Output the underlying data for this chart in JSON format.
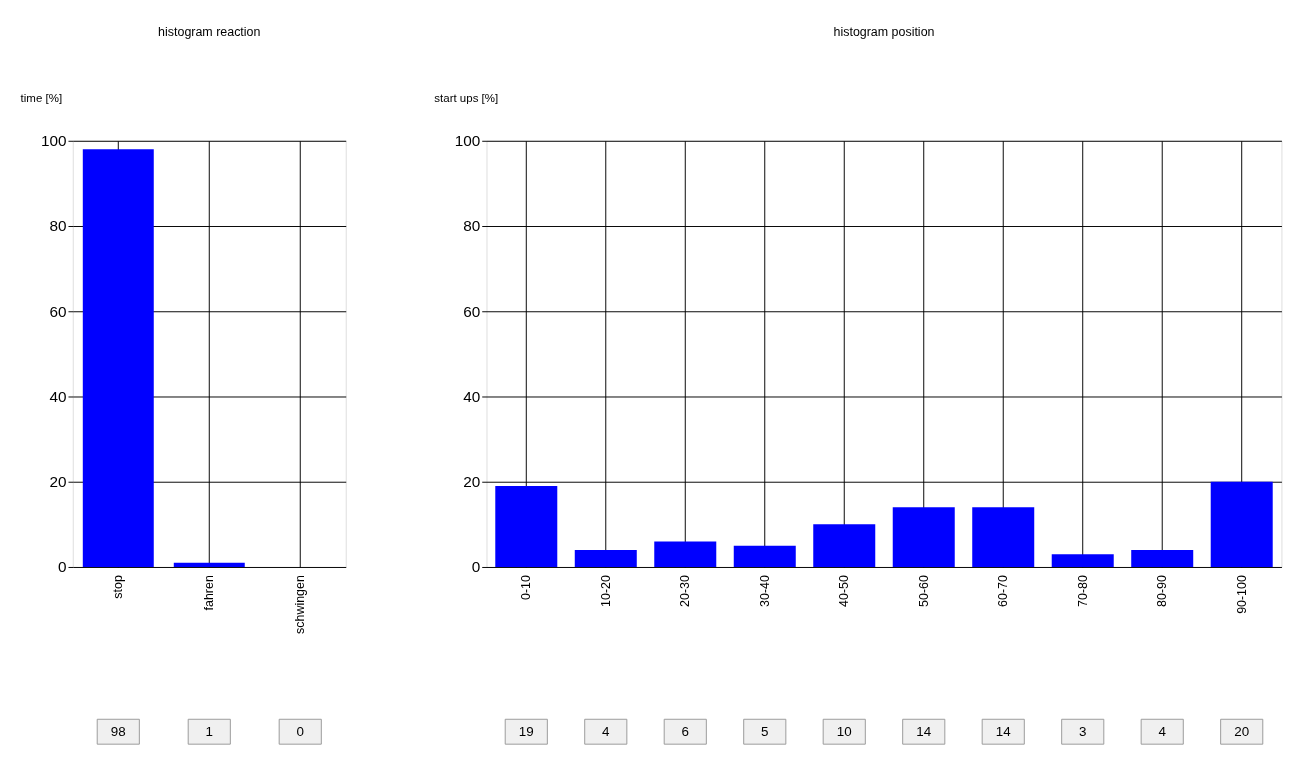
{
  "chart_data": [
    {
      "type": "bar",
      "title": "histogram reaction",
      "ylabel": "time [%]",
      "categories": [
        "stop",
        "fahren",
        "schwingen"
      ],
      "values": [
        98,
        1,
        0
      ],
      "color": "#0000ff",
      "ylim": [
        0,
        100
      ],
      "yticks": [
        0,
        20,
        40,
        60,
        80,
        100
      ],
      "grid": true,
      "data_labels": true
    },
    {
      "type": "bar",
      "title": "histogram position",
      "ylabel": "start ups [%]",
      "categories": [
        "0-10",
        "10-20",
        "20-30",
        "30-40",
        "40-50",
        "50-60",
        "60-70",
        "70-80",
        "80-90",
        "90-100"
      ],
      "values": [
        19,
        4,
        6,
        5,
        10,
        14,
        14,
        3,
        4,
        20
      ],
      "color": "#0000ff",
      "ylim": [
        0,
        100
      ],
      "yticks": [
        0,
        20,
        40,
        60,
        80,
        100
      ],
      "grid": true,
      "data_labels": true
    }
  ]
}
